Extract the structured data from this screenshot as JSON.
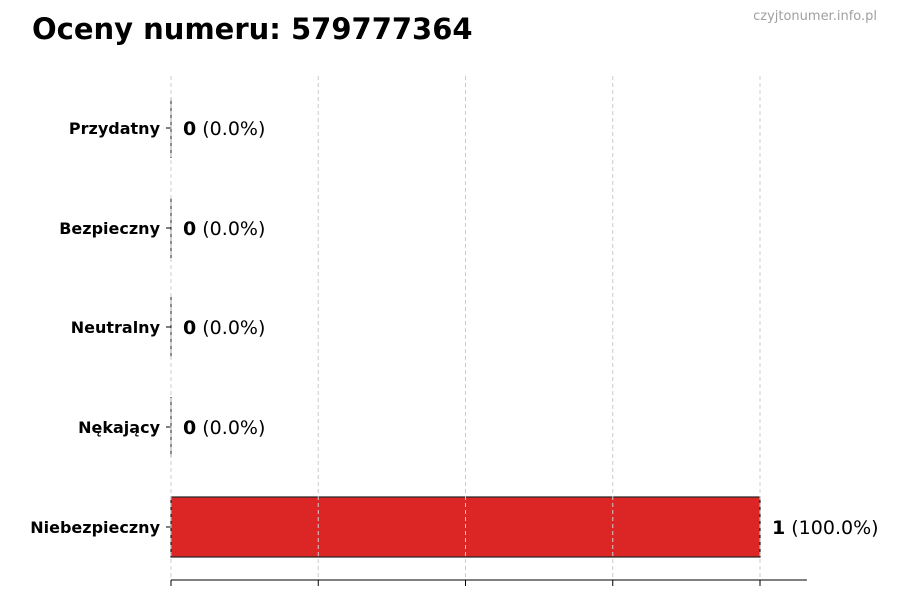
{
  "title": "Oceny numeru: 579777364",
  "watermark": "czyjtonumer.info.pl",
  "chart_data": {
    "type": "bar",
    "orientation": "horizontal",
    "title": "Oceny numeru: 579777364",
    "categories": [
      "Przydatny",
      "Bezpieczny",
      "Neutralny",
      "Nękający",
      "Niebezpieczny"
    ],
    "values": [
      0,
      0,
      0,
      0,
      1
    ],
    "data_labels": [
      {
        "count": "0",
        "pct": "(0.0%)"
      },
      {
        "count": "0",
        "pct": "(0.0%)"
      },
      {
        "count": "0",
        "pct": "(0.0%)"
      },
      {
        "count": "0",
        "pct": "(0.0%)"
      },
      {
        "count": "1",
        "pct": "(100.0%)"
      }
    ],
    "bar_colors": [
      "#dc2626",
      "#dc2626",
      "#dc2626",
      "#dc2626",
      "#dc2626"
    ],
    "xlim": [
      0,
      1.1
    ],
    "xticks": [
      0,
      0.25,
      0.5,
      0.75,
      1
    ],
    "grid": "x-dashed",
    "xlabel": "",
    "ylabel": ""
  }
}
